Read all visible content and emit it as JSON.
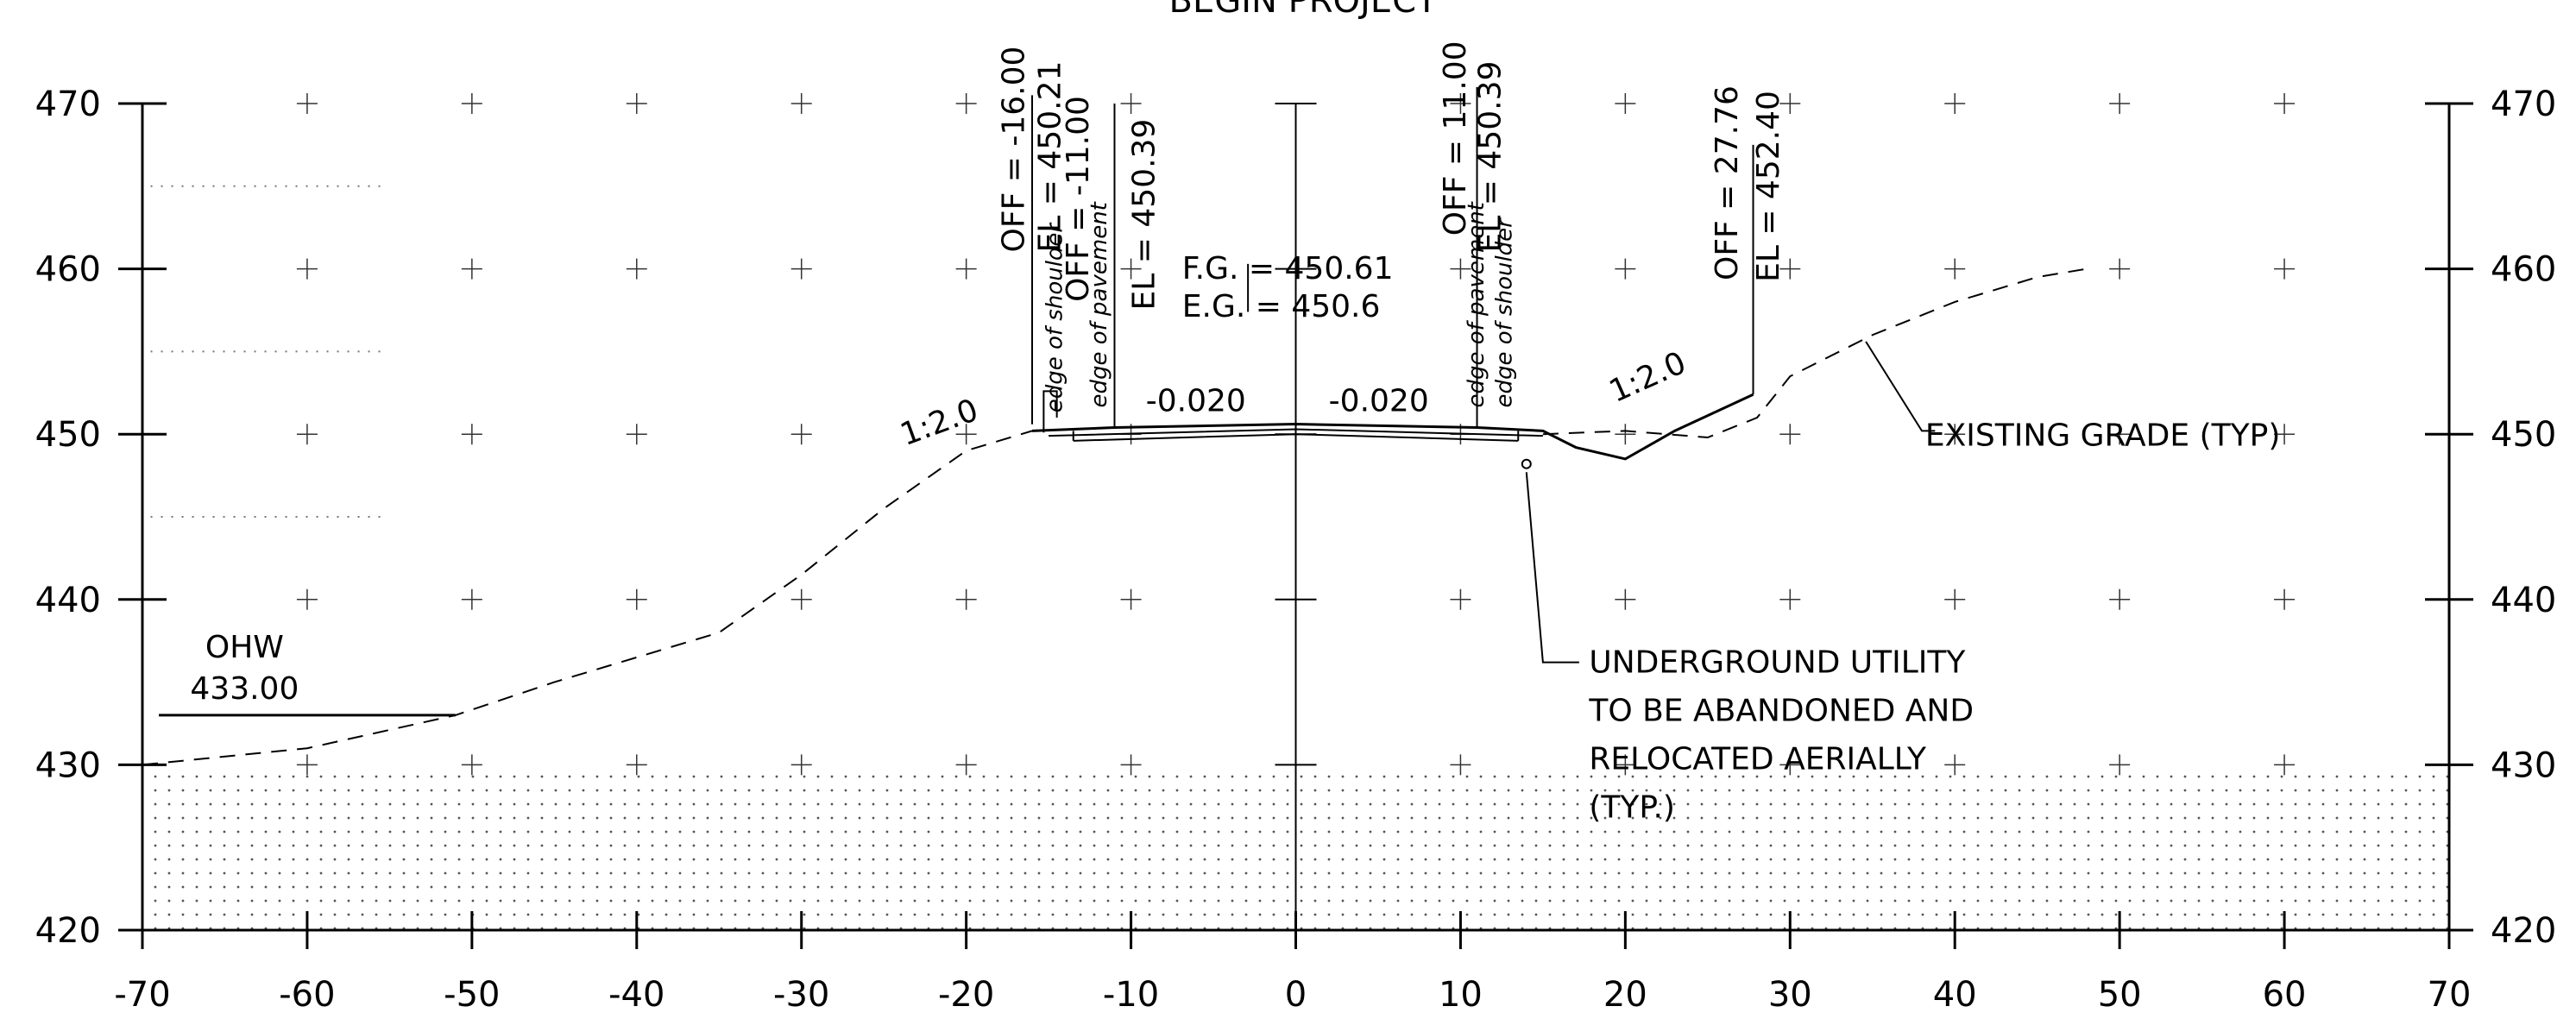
{
  "header_title": "BEGIN PROJECT",
  "x_axis": {
    "min": -70,
    "max": 70,
    "step": 10,
    "tick_labels": [
      "-70",
      "-60",
      "-50",
      "-40",
      "-30",
      "-20",
      "-10",
      "0",
      "10",
      "20",
      "30",
      "40",
      "50",
      "60",
      "70"
    ]
  },
  "y_axis": {
    "min": 420,
    "max": 470,
    "step": 10,
    "tick_labels": [
      "420",
      "430",
      "440",
      "450",
      "460",
      "470"
    ]
  },
  "grid_markers": "plus",
  "annotations": {
    "off_left_shoulder": "OFF = -16.00",
    "el_left_shoulder": "EL = 450.21",
    "off_left_pavement": "OFF = -11.00",
    "el_left_pavement": "EL = 450.39",
    "off_right_pavement": "OFF = 11.00",
    "el_right_pavement": "EL = 450.39",
    "off_right_tie": "OFF = 27.76",
    "el_right_tie": "EL = 452.40",
    "fg": "F.G. = 450.61",
    "eg": "E.G. = 450.6",
    "slope_left": "1:2.0",
    "slope_right": "1:2.0",
    "cross_slope_left": "-0.020",
    "cross_slope_right": "-0.020",
    "edge_shoulder": "edge of shoulder",
    "edge_pavement": "edge of pavement",
    "ohw_label": "OHW",
    "ohw_value": "433.00",
    "existing_grade": "EXISTING GRADE (TYP)",
    "utility_lines": [
      "UNDERGROUND UTILITY",
      "TO BE ABANDONED AND",
      "RELOCATED AERIALLY",
      "(TYP.)"
    ]
  },
  "chart_data": {
    "type": "line",
    "series": [
      {
        "name": "",
        "x": [
          -70,
          -60,
          -51,
          -45,
          -35,
          -30,
          -25,
          -20,
          -16
        ],
        "y": [
          430.0,
          431.0,
          433.0,
          435.0,
          438.0,
          441.5,
          445.5,
          449.0,
          450.2
        ]
      },
      {
        "name": "",
        "x": [
          -16,
          -11,
          0,
          11,
          15,
          17,
          20,
          23,
          27.76
        ],
        "y": [
          450.2,
          450.4,
          450.61,
          450.4,
          450.2,
          449.2,
          448.5,
          450.2,
          452.4
        ]
      },
      {
        "name": "",
        "x": [
          15,
          20,
          23,
          25,
          28,
          30,
          35,
          40,
          45,
          48
        ],
        "y": [
          450.0,
          450.2,
          450.3,
          450.0,
          451.5,
          453.5,
          456.0,
          458.0,
          459.5,
          460.0
        ]
      }
    ],
    "xlabel": "",
    "ylabel": "",
    "xlim": [
      -70,
      70
    ],
    "ylim": [
      420,
      470
    ],
    "existing_grade_right": {
      "x": [
        15,
        20,
        25,
        28,
        30,
        35,
        40,
        45,
        48
      ],
      "y": [
        450.0,
        450.2,
        449.8,
        451.0,
        453.5,
        456.0,
        458.0,
        459.5,
        460.0
      ]
    },
    "ohw_line": {
      "x": [
        -69,
        -51
      ],
      "y": [
        433,
        433
      ]
    },
    "utility_point": {
      "x": 14,
      "y": 448.2
    },
    "grid": true,
    "shaded_band": {
      "ymin": 420,
      "ymax": 430,
      "pattern": "dots"
    }
  }
}
